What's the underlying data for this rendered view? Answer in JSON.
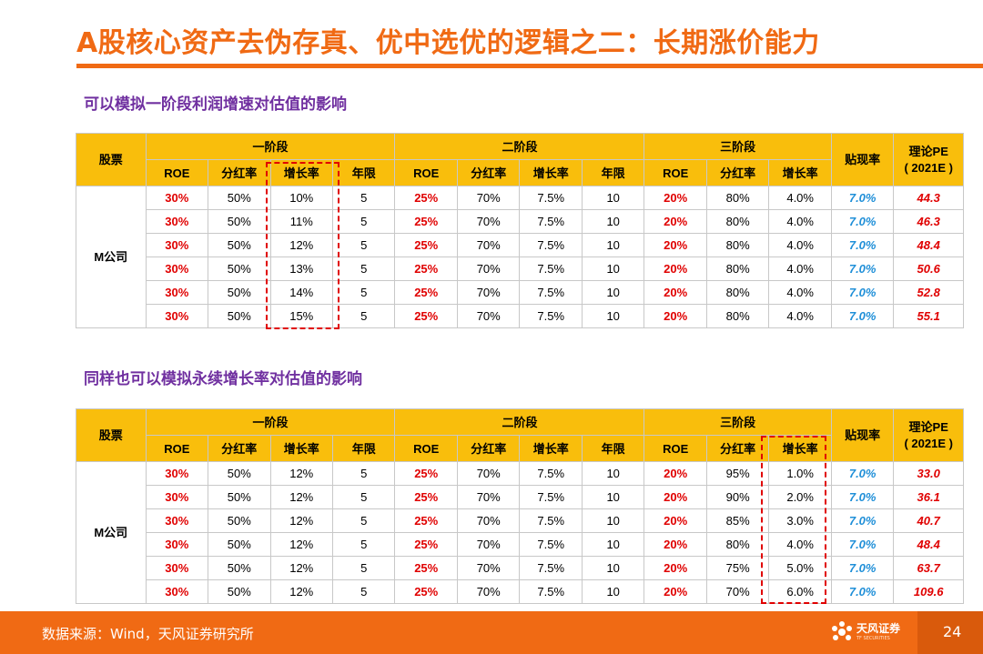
{
  "title": "A股核心资产去伪存真、优中选优的逻辑之二：长期涨价能力",
  "section1": {
    "subtitle": "可以模拟一阶段利润增速对估值的影响"
  },
  "section2": {
    "subtitle": "同样也可以模拟永续增长率对估值的影响"
  },
  "headers": {
    "stock": "股票",
    "stage1": "一阶段",
    "stage2": "二阶段",
    "stage3": "三阶段",
    "discount": "贴现率",
    "pe_line1": "理论PE",
    "pe_line2": "( 2021E )",
    "roe": "ROE",
    "payout": "分红率",
    "growth": "增长率",
    "years": "年限"
  },
  "table1": {
    "stock_name": "M公司",
    "rows": [
      [
        "30%",
        "50%",
        "10%",
        "5",
        "25%",
        "70%",
        "7.5%",
        "10",
        "20%",
        "80%",
        "4.0%",
        "7.0%",
        "44.3"
      ],
      [
        "30%",
        "50%",
        "11%",
        "5",
        "25%",
        "70%",
        "7.5%",
        "10",
        "20%",
        "80%",
        "4.0%",
        "7.0%",
        "46.3"
      ],
      [
        "30%",
        "50%",
        "12%",
        "5",
        "25%",
        "70%",
        "7.5%",
        "10",
        "20%",
        "80%",
        "4.0%",
        "7.0%",
        "48.4"
      ],
      [
        "30%",
        "50%",
        "13%",
        "5",
        "25%",
        "70%",
        "7.5%",
        "10",
        "20%",
        "80%",
        "4.0%",
        "7.0%",
        "50.6"
      ],
      [
        "30%",
        "50%",
        "14%",
        "5",
        "25%",
        "70%",
        "7.5%",
        "10",
        "20%",
        "80%",
        "4.0%",
        "7.0%",
        "52.8"
      ],
      [
        "30%",
        "50%",
        "15%",
        "5",
        "25%",
        "70%",
        "7.5%",
        "10",
        "20%",
        "80%",
        "4.0%",
        "7.0%",
        "55.1"
      ]
    ]
  },
  "table2": {
    "stock_name": "M公司",
    "rows": [
      [
        "30%",
        "50%",
        "12%",
        "5",
        "25%",
        "70%",
        "7.5%",
        "10",
        "20%",
        "95%",
        "1.0%",
        "7.0%",
        "33.0"
      ],
      [
        "30%",
        "50%",
        "12%",
        "5",
        "25%",
        "70%",
        "7.5%",
        "10",
        "20%",
        "90%",
        "2.0%",
        "7.0%",
        "36.1"
      ],
      [
        "30%",
        "50%",
        "12%",
        "5",
        "25%",
        "70%",
        "7.5%",
        "10",
        "20%",
        "85%",
        "3.0%",
        "7.0%",
        "40.7"
      ],
      [
        "30%",
        "50%",
        "12%",
        "5",
        "25%",
        "70%",
        "7.5%",
        "10",
        "20%",
        "80%",
        "4.0%",
        "7.0%",
        "48.4"
      ],
      [
        "30%",
        "50%",
        "12%",
        "5",
        "25%",
        "70%",
        "7.5%",
        "10",
        "20%",
        "75%",
        "5.0%",
        "7.0%",
        "63.7"
      ],
      [
        "30%",
        "50%",
        "12%",
        "5",
        "25%",
        "70%",
        "7.5%",
        "10",
        "20%",
        "70%",
        "6.0%",
        "7.0%",
        "109.6"
      ]
    ]
  },
  "footer": {
    "source": "数据来源：Wind，天风证券研究所",
    "logo_text": "天风证券",
    "logo_subtext": "TF SECURITIES",
    "page_number": "24"
  },
  "colors": {
    "accent_orange": "#f06a14",
    "header_yellow": "#f9be0c",
    "subtitle_purple": "#7030a0",
    "value_red": "#e00000",
    "discount_blue": "#1f8fd8"
  }
}
